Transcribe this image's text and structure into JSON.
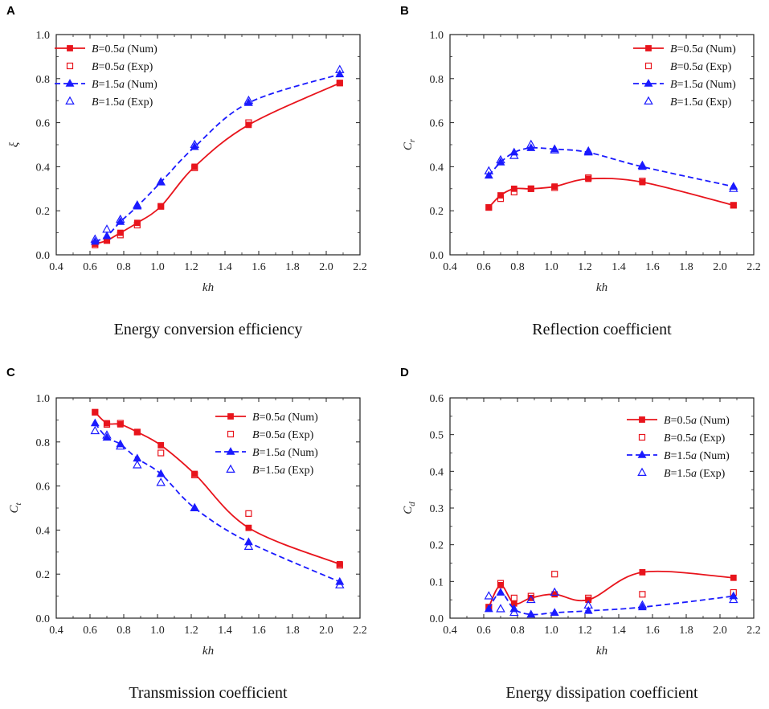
{
  "figure": {
    "panels": [
      "A",
      "B",
      "C",
      "D"
    ]
  },
  "legend_parts": {
    "B_symbol": "B",
    "a_symbol": "a",
    "eq_05": "=0.5",
    "eq_15": "=1.5",
    "num": " (Num)",
    "exp": " (Exp)"
  },
  "colors": {
    "red": "#e8141c",
    "blue": "#1a1aff"
  },
  "chart_data": [
    {
      "panel": "A",
      "type": "line",
      "caption": "Energy conversion efficiency",
      "xlabel": "kh",
      "ylabel": "ξ",
      "xlim": [
        0.4,
        2.2
      ],
      "ylim": [
        0.0,
        1.0
      ],
      "xticks": [
        "0.4",
        "0.6",
        "0.8",
        "1.0",
        "1.2",
        "1.4",
        "1.6",
        "1.8",
        "2.0",
        "2.2"
      ],
      "yticks": [
        "0.0",
        "0.2",
        "0.4",
        "0.6",
        "0.8",
        "1.0"
      ],
      "legend_position": "top-left",
      "series": [
        {
          "name": "B=0.5a (Num)",
          "style": "solid",
          "color": "red",
          "marker": "square-filled",
          "x": [
            0.63,
            0.7,
            0.78,
            0.88,
            1.02,
            1.22,
            1.54,
            2.08
          ],
          "y": [
            0.05,
            0.065,
            0.1,
            0.145,
            0.22,
            0.4,
            0.59,
            0.78
          ]
        },
        {
          "name": "B=0.5a (Exp)",
          "style": "none",
          "color": "red",
          "marker": "square-open",
          "x": [
            0.63,
            0.7,
            0.78,
            0.88,
            1.02,
            1.22,
            1.54,
            2.08
          ],
          "y": [
            0.045,
            0.065,
            0.09,
            0.135,
            0.22,
            0.395,
            0.6,
            0.78
          ]
        },
        {
          "name": "B=1.5a (Num)",
          "style": "dashed",
          "color": "blue",
          "marker": "triangle-filled",
          "x": [
            0.63,
            0.7,
            0.78,
            0.88,
            1.02,
            1.22,
            1.54,
            2.08
          ],
          "y": [
            0.06,
            0.085,
            0.15,
            0.22,
            0.33,
            0.49,
            0.69,
            0.82
          ]
        },
        {
          "name": "B=1.5a (Exp)",
          "style": "none",
          "color": "blue",
          "marker": "triangle-open",
          "x": [
            0.63,
            0.7,
            0.78,
            0.88,
            1.02,
            1.22,
            1.54,
            2.08
          ],
          "y": [
            0.07,
            0.115,
            0.16,
            0.225,
            0.33,
            0.5,
            0.7,
            0.84
          ]
        }
      ]
    },
    {
      "panel": "B",
      "type": "line",
      "caption": "Reflection coefficient",
      "xlabel": "kh",
      "ylabel": "C",
      "ylabel_sub": "r",
      "xlim": [
        0.4,
        2.2
      ],
      "ylim": [
        0.0,
        1.0
      ],
      "xticks": [
        "0.4",
        "0.6",
        "0.8",
        "1.0",
        "1.2",
        "1.4",
        "1.6",
        "1.8",
        "2.0",
        "2.2"
      ],
      "yticks": [
        "0.0",
        "0.2",
        "0.4",
        "0.6",
        "0.8",
        "1.0"
      ],
      "legend_position": "top-right",
      "series": [
        {
          "name": "B=0.5a (Num)",
          "style": "solid",
          "color": "red",
          "marker": "square-filled",
          "x": [
            0.63,
            0.7,
            0.78,
            0.88,
            1.02,
            1.22,
            1.54,
            2.08
          ],
          "y": [
            0.215,
            0.27,
            0.3,
            0.3,
            0.31,
            0.345,
            0.33,
            0.225
          ]
        },
        {
          "name": "B=0.5a (Exp)",
          "style": "none",
          "color": "red",
          "marker": "square-open",
          "x": [
            0.63,
            0.7,
            0.78,
            0.88,
            1.02,
            1.22,
            1.54,
            2.08
          ],
          "y": [
            0.215,
            0.255,
            0.285,
            0.3,
            0.305,
            0.35,
            0.335,
            0.225
          ]
        },
        {
          "name": "B=1.5a (Num)",
          "style": "dashed",
          "color": "blue",
          "marker": "triangle-filled",
          "x": [
            0.63,
            0.7,
            0.78,
            0.88,
            1.02,
            1.22,
            1.54,
            2.08
          ],
          "y": [
            0.36,
            0.42,
            0.465,
            0.485,
            0.48,
            0.465,
            0.4,
            0.31
          ]
        },
        {
          "name": "B=1.5a (Exp)",
          "style": "none",
          "color": "blue",
          "marker": "triangle-open",
          "x": [
            0.63,
            0.7,
            0.78,
            0.88,
            1.02,
            1.22,
            1.54,
            2.08
          ],
          "y": [
            0.38,
            0.43,
            0.45,
            0.5,
            0.475,
            0.47,
            0.405,
            0.3
          ]
        }
      ]
    },
    {
      "panel": "C",
      "type": "line",
      "caption": "Transmission coefficient",
      "xlabel": "kh",
      "ylabel": "C",
      "ylabel_sub": "t",
      "xlim": [
        0.4,
        2.2
      ],
      "ylim": [
        0.0,
        1.0
      ],
      "xticks": [
        "0.4",
        "0.6",
        "0.8",
        "1.0",
        "1.2",
        "1.4",
        "1.6",
        "1.8",
        "2.0",
        "2.2"
      ],
      "yticks": [
        "0.0",
        "0.2",
        "0.4",
        "0.6",
        "0.8",
        "1.0"
      ],
      "legend_position": "top-right",
      "series": [
        {
          "name": "B=0.5a (Num)",
          "style": "solid",
          "color": "red",
          "marker": "square-filled",
          "x": [
            0.63,
            0.7,
            0.78,
            0.88,
            1.02,
            1.22,
            1.54,
            2.08
          ],
          "y": [
            0.935,
            0.885,
            0.88,
            0.845,
            0.785,
            0.655,
            0.41,
            0.245
          ]
        },
        {
          "name": "B=0.5a (Exp)",
          "style": "none",
          "color": "red",
          "marker": "square-open",
          "x": [
            0.63,
            0.7,
            0.78,
            0.88,
            1.02,
            1.22,
            1.54,
            2.08
          ],
          "y": [
            0.935,
            0.88,
            0.885,
            0.845,
            0.75,
            0.65,
            0.475,
            0.24
          ]
        },
        {
          "name": "B=1.5a (Num)",
          "style": "dashed",
          "color": "blue",
          "marker": "triangle-filled",
          "x": [
            0.63,
            0.7,
            0.78,
            0.88,
            1.02,
            1.22,
            1.54,
            2.08
          ],
          "y": [
            0.885,
            0.82,
            0.79,
            0.725,
            0.655,
            0.5,
            0.345,
            0.165
          ]
        },
        {
          "name": "B=1.5a (Exp)",
          "style": "none",
          "color": "blue",
          "marker": "triangle-open",
          "x": [
            0.63,
            0.7,
            0.78,
            0.88,
            1.02,
            1.22,
            1.54,
            2.08
          ],
          "y": [
            0.85,
            0.83,
            0.78,
            0.695,
            0.615,
            0.5,
            0.325,
            0.15
          ]
        }
      ]
    },
    {
      "panel": "D",
      "type": "line",
      "caption": "Energy dissipation coefficient",
      "xlabel": "kh",
      "ylabel": "C",
      "ylabel_sub": "d",
      "xlim": [
        0.4,
        2.2
      ],
      "ylim": [
        0.0,
        0.6
      ],
      "xticks": [
        "0.4",
        "0.6",
        "0.8",
        "1.0",
        "1.2",
        "1.4",
        "1.6",
        "1.8",
        "2.0",
        "2.2"
      ],
      "yticks": [
        "0.0",
        "0.1",
        "0.2",
        "0.3",
        "0.4",
        "0.5",
        "0.6"
      ],
      "legend_position": "top-right",
      "series": [
        {
          "name": "B=0.5a (Num)",
          "style": "solid",
          "color": "red",
          "marker": "square-filled",
          "x": [
            0.63,
            0.7,
            0.78,
            0.88,
            1.02,
            1.22,
            1.54,
            2.08
          ],
          "y": [
            0.03,
            0.09,
            0.04,
            0.055,
            0.065,
            0.05,
            0.125,
            0.11
          ]
        },
        {
          "name": "B=0.5a (Exp)",
          "style": "none",
          "color": "red",
          "marker": "square-open",
          "x": [
            0.63,
            0.7,
            0.78,
            0.88,
            1.02,
            1.22,
            1.54,
            2.08
          ],
          "y": [
            0.03,
            0.095,
            0.055,
            0.06,
            0.12,
            0.055,
            0.065,
            0.07
          ]
        },
        {
          "name": "B=1.5a (Num)",
          "style": "dashed",
          "color": "blue",
          "marker": "triangle-filled",
          "x": [
            0.63,
            0.7,
            0.78,
            0.88,
            1.02,
            1.22,
            1.54,
            2.08
          ],
          "y": [
            0.025,
            0.07,
            0.025,
            0.01,
            0.015,
            0.02,
            0.03,
            0.06
          ]
        },
        {
          "name": "B=1.5a (Exp)",
          "style": "none",
          "color": "blue",
          "marker": "triangle-open",
          "x": [
            0.63,
            0.7,
            0.78,
            0.88,
            1.02,
            1.22,
            1.54,
            2.08
          ],
          "y": [
            0.06,
            0.025,
            0.015,
            0.05,
            0.07,
            0.035,
            0.035,
            0.05
          ]
        }
      ]
    }
  ]
}
